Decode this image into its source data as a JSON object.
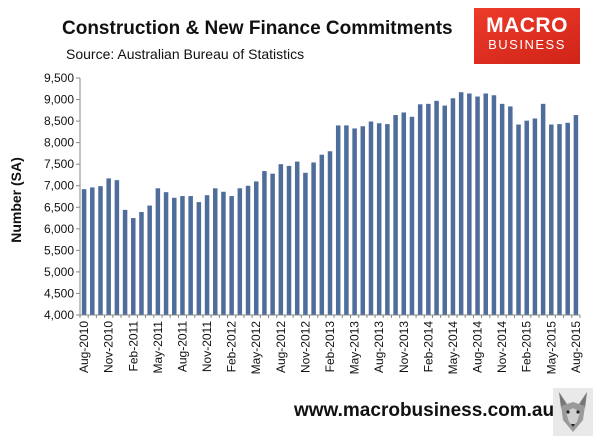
{
  "title": "Construction & New Finance Commitments",
  "source": "Source: Australian Bureau of Statistics",
  "logo": {
    "line1": "MACRO",
    "line2": "BUSINESS",
    "color": "#e0301e"
  },
  "footer": {
    "url": "www.macrobusiness.com.au"
  },
  "fox_icon": "fox-mascot-icon",
  "chart_data": {
    "type": "bar",
    "ylabel": "Number (SA)",
    "ylim": [
      4000,
      9500
    ],
    "yticks": [
      4000,
      4500,
      5000,
      5500,
      6000,
      6500,
      7000,
      7500,
      8000,
      8500,
      9000,
      9500
    ],
    "ytick_labels": [
      "4,000",
      "4,500",
      "5,000",
      "5,500",
      "6,000",
      "6,500",
      "7,000",
      "7,500",
      "8,000",
      "8,500",
      "9,000",
      "9,500"
    ],
    "grid": false,
    "bar_color": "#4f6d9b",
    "categories": [
      "Aug-2010",
      "Sep-2010",
      "Oct-2010",
      "Nov-2010",
      "Dec-2010",
      "Jan-2011",
      "Feb-2011",
      "Mar-2011",
      "Apr-2011",
      "May-2011",
      "Jun-2011",
      "Jul-2011",
      "Aug-2011",
      "Sep-2011",
      "Oct-2011",
      "Nov-2011",
      "Dec-2011",
      "Jan-2012",
      "Feb-2012",
      "Mar-2012",
      "Apr-2012",
      "May-2012",
      "Jun-2012",
      "Jul-2012",
      "Aug-2012",
      "Sep-2012",
      "Oct-2012",
      "Nov-2012",
      "Dec-2012",
      "Jan-2013",
      "Feb-2013",
      "Mar-2013",
      "Apr-2013",
      "May-2013",
      "Jun-2013",
      "Jul-2013",
      "Aug-2013",
      "Sep-2013",
      "Oct-2013",
      "Nov-2013",
      "Dec-2013",
      "Jan-2014",
      "Feb-2014",
      "Mar-2014",
      "Apr-2014",
      "May-2014",
      "Jun-2014",
      "Jul-2014",
      "Aug-2014",
      "Sep-2014",
      "Oct-2014",
      "Nov-2014",
      "Dec-2014",
      "Jan-2015",
      "Feb-2015",
      "Mar-2015",
      "Apr-2015",
      "May-2015",
      "Jun-2015",
      "Jul-2015",
      "Aug-2015"
    ],
    "xtick_labels": [
      "Aug-2010",
      "Nov-2010",
      "Feb-2011",
      "May-2011",
      "Aug-2011",
      "Nov-2011",
      "Feb-2012",
      "May-2012",
      "Aug-2012",
      "Nov-2012",
      "Feb-2013",
      "May-2013",
      "Aug-2013",
      "Nov-2013",
      "Feb-2014",
      "May-2014",
      "Aug-2014",
      "Nov-2014",
      "Feb-2015",
      "May-2015",
      "Aug-2015"
    ],
    "values": [
      6920,
      6960,
      6990,
      7170,
      7130,
      6440,
      6250,
      6390,
      6540,
      6940,
      6850,
      6720,
      6760,
      6760,
      6620,
      6780,
      6940,
      6860,
      6760,
      6940,
      7000,
      7100,
      7340,
      7280,
      7500,
      7460,
      7560,
      7300,
      7540,
      7720,
      7800,
      8400,
      8400,
      8330,
      8380,
      8490,
      8450,
      8430,
      8640,
      8700,
      8600,
      8890,
      8900,
      8970,
      8860,
      9030,
      9170,
      9140,
      9070,
      9140,
      9100,
      8900,
      8840,
      8420,
      8510,
      8560,
      8900,
      8420,
      8430,
      8460,
      8640
    ]
  }
}
